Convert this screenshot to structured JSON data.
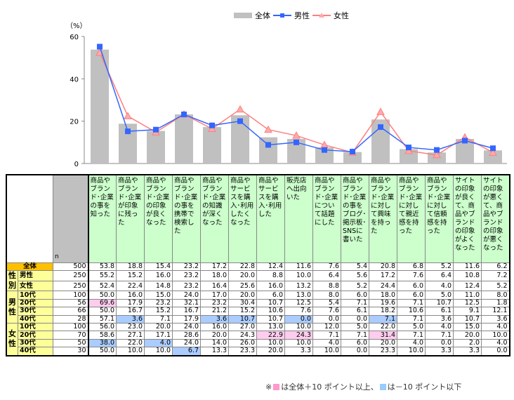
{
  "chart_data": {
    "type": "bar+line",
    "ylabel": "（%）",
    "ylim": [
      0,
      60
    ],
    "yticks": [
      0,
      20,
      40,
      60
    ],
    "legend": {
      "position": "top-center",
      "entries": [
        "全体",
        "男性",
        "女性"
      ]
    },
    "colors": {
      "全体": "#c0c0c0",
      "男性": "#3366ff",
      "女性": "#ff7f7f"
    },
    "categories": [
      "商品やブランド･企業の事を知った",
      "商品やブランド･企業が印象に残った",
      "商品やブランド･企業の印象が良くなった",
      "商品やブランド･企業の事を携帯で検索した",
      "商品やブランド･企業の知識が深くなった",
      "商品やサービスを購入･利用したくなった",
      "商品やサービスを購入･利用した",
      "販売店へ出向いた",
      "商品やブランド･企業について話題にした",
      "商品やブランド･企業の事をブログ･掲示板･SNSに書いた",
      "商品やブランド･企業に対して興味を持った",
      "商品やブランド･企業に対して親近感を持った",
      "商品やブランド･企業に対して信頼感を持った",
      "サイトの印象が良くて、商品やブランドの印象がよくなった",
      "サイトの印象が悪くて、商品やブランドの印象が悪くなった"
    ],
    "series": [
      {
        "name": "全体",
        "type": "bar",
        "values": [
          53.8,
          18.8,
          15.4,
          23.2,
          17.2,
          22.8,
          12.4,
          11.6,
          7.6,
          5.4,
          20.8,
          6.8,
          5.2,
          11.6,
          6.2
        ]
      },
      {
        "name": "男性",
        "type": "line",
        "values": [
          55.2,
          15.2,
          16.0,
          23.2,
          18.0,
          20.0,
          8.8,
          10.0,
          6.4,
          5.6,
          17.2,
          7.6,
          6.4,
          10.8,
          7.2
        ]
      },
      {
        "name": "女性",
        "type": "line",
        "values": [
          52.4,
          22.4,
          14.8,
          23.2,
          16.4,
          25.6,
          16.0,
          13.2,
          8.8,
          5.2,
          24.4,
          6.0,
          4.0,
          12.4,
          5.2
        ]
      }
    ]
  },
  "table": {
    "n_header": "n",
    "headers": [
      "商品やブランド･企業の事を知った",
      "商品やブランド･企業が印象に残った",
      "商品やブランド･企業の印象が良くなった",
      "商品やブランド･企業の事を携帯で検索した",
      "商品やブランド･企業の知識が深くなった",
      "商品やサービスを購入･利用したくなった",
      "商品やサービスを購入･利用した",
      "販売店へ出向いた",
      "商品やブランド･企業について話題にした",
      "商品やブランド･企業の事をブログ･掲示板･SNSに書いた",
      "商品やブランド･企業に対して興味を持った",
      "商品やブランド･企業に対して親近感を持った",
      "商品やブランド･企業に対して信頼感を持った",
      "サイトの印象が良くて、商品やブランドの印象がよくなった",
      "サイトの印象が悪くて、商品やブランドの印象が悪くなった"
    ],
    "groups": {
      "gender": "性別",
      "male": "男性",
      "female": "女性"
    },
    "rows": [
      {
        "label": "全体",
        "n": "500",
        "v": [
          "53.8",
          "18.8",
          "15.4",
          "23.2",
          "17.2",
          "22.8",
          "12.4",
          "11.6",
          "7.6",
          "5.4",
          "20.8",
          "6.8",
          "5.2",
          "11.6",
          "6.2"
        ],
        "hl": {}
      },
      {
        "label": "男性",
        "n": "250",
        "v": [
          "55.2",
          "15.2",
          "16.0",
          "23.2",
          "18.0",
          "20.0",
          "8.8",
          "10.0",
          "6.4",
          "5.6",
          "17.2",
          "7.6",
          "6.4",
          "10.8",
          "7.2"
        ],
        "hl": {}
      },
      {
        "label": "女性",
        "n": "250",
        "v": [
          "52.4",
          "22.4",
          "14.8",
          "23.2",
          "16.4",
          "25.6",
          "16.0",
          "13.2",
          "8.8",
          "5.2",
          "24.4",
          "6.0",
          "4.0",
          "12.4",
          "5.2"
        ],
        "hl": {}
      },
      {
        "label": "10代",
        "n": "100",
        "v": [
          "50.0",
          "16.0",
          "15.0",
          "24.0",
          "17.0",
          "20.0",
          "6.0",
          "13.0",
          "8.0",
          "6.0",
          "18.0",
          "6.0",
          "5.0",
          "11.0",
          "8.0"
        ],
        "hl": {}
      },
      {
        "label": "20代",
        "n": "56",
        "v": [
          "69.6",
          "17.9",
          "23.2",
          "32.1",
          "23.2",
          "30.4",
          "10.7",
          "12.5",
          "5.4",
          "7.1",
          "19.6",
          "7.1",
          "10.7",
          "12.5",
          "1.8"
        ],
        "hl": {
          "0": "pink"
        }
      },
      {
        "label": "30代",
        "n": "66",
        "v": [
          "50.0",
          "16.7",
          "15.2",
          "16.7",
          "21.2",
          "15.2",
          "10.6",
          "7.6",
          "7.6",
          "6.1",
          "18.2",
          "10.6",
          "6.1",
          "9.1",
          "12.1"
        ],
        "hl": {}
      },
      {
        "label": "40代",
        "n": "28",
        "v": [
          "57.1",
          "3.6",
          "7.1",
          "17.9",
          "3.6",
          "10.7",
          "10.7",
          "0.0",
          "0.0",
          "0.0",
          "7.1",
          "7.1",
          "3.6",
          "10.7",
          "3.6"
        ],
        "hl": {
          "1": "blue",
          "4": "blue",
          "5": "blue",
          "7": "blue",
          "10": "blue"
        }
      },
      {
        "label": "10代",
        "n": "100",
        "v": [
          "56.0",
          "23.0",
          "20.0",
          "24.0",
          "16.0",
          "27.0",
          "13.0",
          "10.0",
          "12.0",
          "5.0",
          "22.0",
          "5.0",
          "4.0",
          "15.0",
          "4.0"
        ],
        "hl": {}
      },
      {
        "label": "20代",
        "n": "70",
        "v": [
          "58.6",
          "27.1",
          "17.1",
          "28.6",
          "20.0",
          "24.3",
          "22.9",
          "24.3",
          "7.1",
          "7.1",
          "31.4",
          "7.1",
          "7.1",
          "20.0",
          "10.0"
        ],
        "hl": {
          "6": "pink",
          "7": "pink",
          "10": "pink"
        }
      },
      {
        "label": "30代",
        "n": "50",
        "v": [
          "38.0",
          "22.0",
          "4.0",
          "24.0",
          "14.0",
          "26.0",
          "10.0",
          "10.0",
          "4.0",
          "6.0",
          "20.0",
          "4.0",
          "0.0",
          "2.0",
          "4.0"
        ],
        "hl": {
          "0": "blue",
          "2": "blue"
        }
      },
      {
        "label": "40代",
        "n": "30",
        "v": [
          "50.0",
          "10.0",
          "10.0",
          "6.7",
          "13.3",
          "23.3",
          "20.0",
          "3.3",
          "10.0",
          "0.0",
          "23.3",
          "10.0",
          "3.3",
          "3.3",
          "0.0"
        ],
        "hl": {
          "3": "blue"
        }
      }
    ]
  },
  "note": {
    "prefix": "※",
    "pink_text": "は全体＋10 ポイント以上、",
    "blue_text": "は－10 ポイント以下",
    "pink_color": "#ff99cc",
    "blue_color": "#99ccff"
  }
}
